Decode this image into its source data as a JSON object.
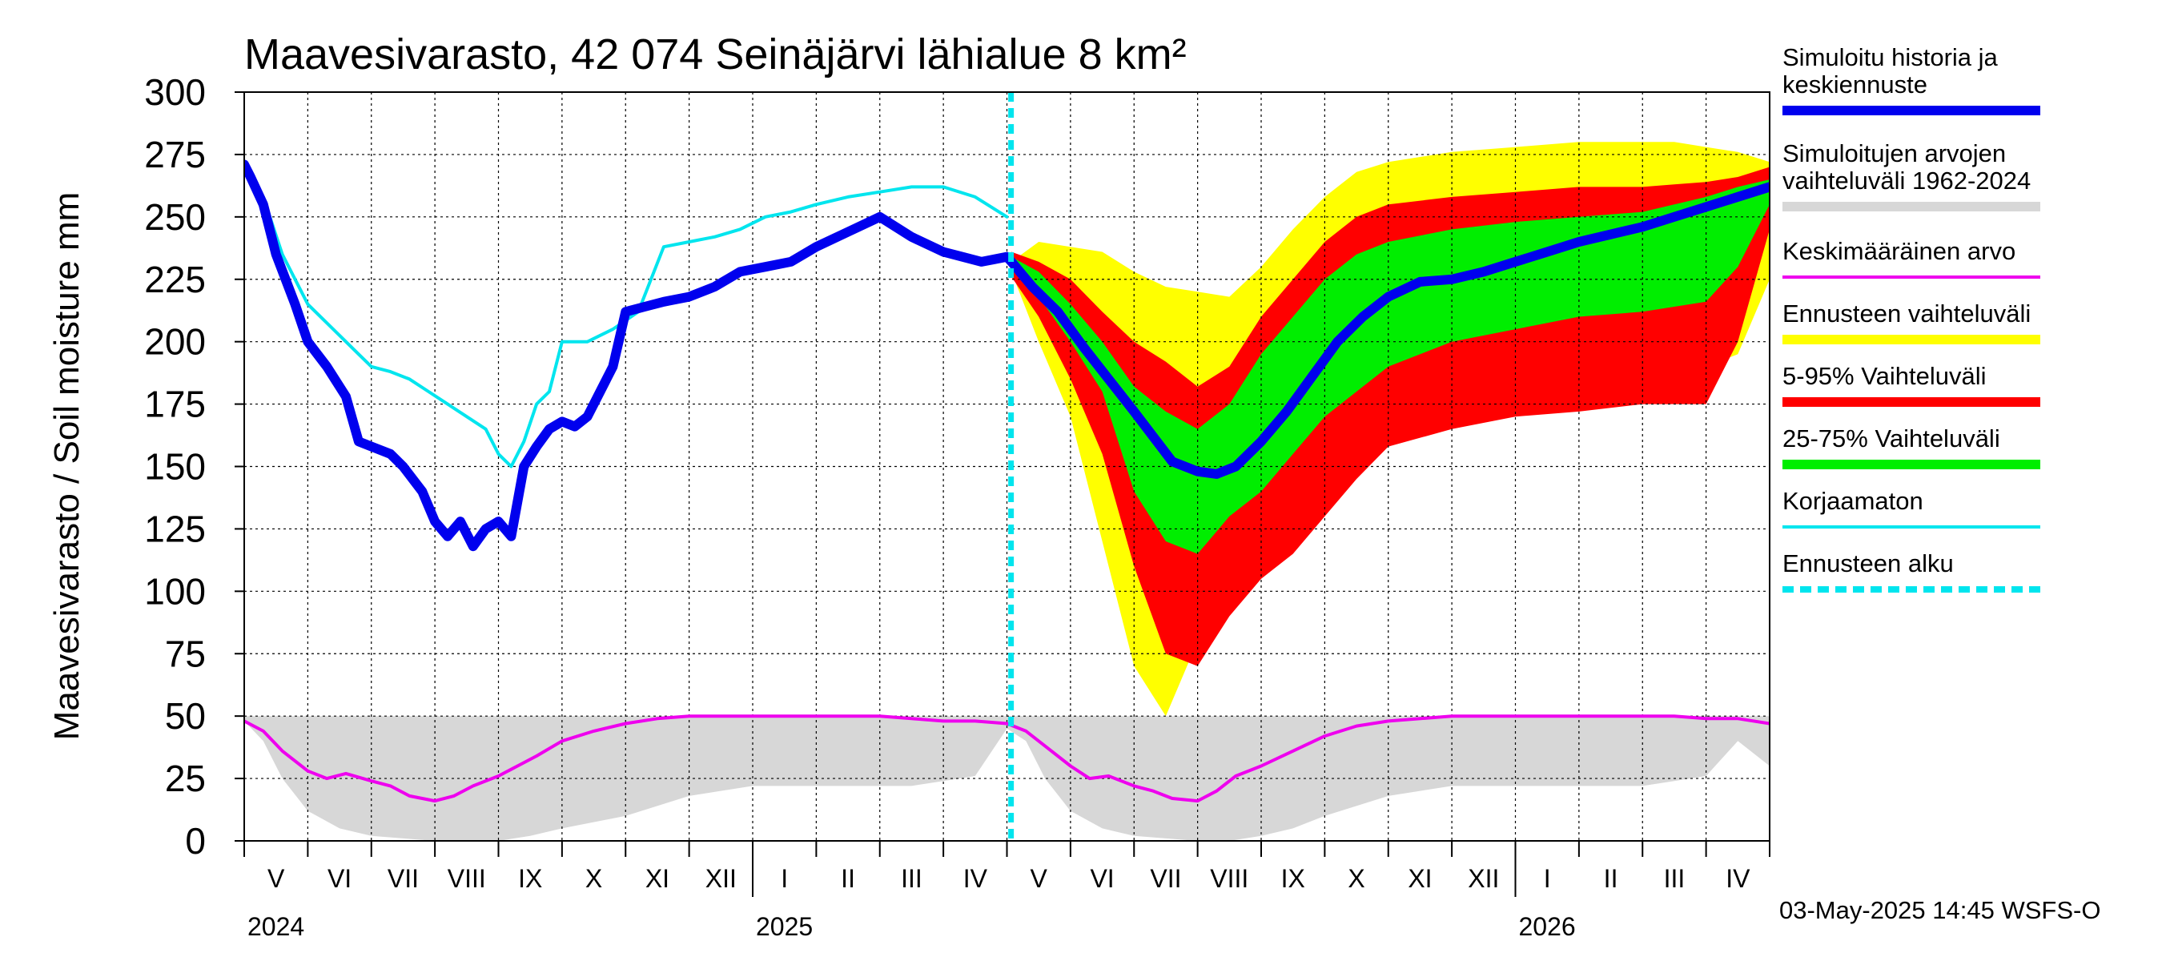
{
  "title": "Maavesivarasto, 42 074 Seinäjärvi lähialue 8 km²",
  "footer": "03-May-2025 14:45 WSFS-O",
  "chart_data": {
    "type": "line",
    "title": "Maavesivarasto, 42 074 Seinäjärvi lähialue 8 km²",
    "ylabel": "Maavesivarasto / Soil moisture   mm",
    "ylim": [
      0,
      300
    ],
    "yticks": [
      0,
      25,
      50,
      75,
      100,
      125,
      150,
      175,
      200,
      225,
      250,
      275,
      300
    ],
    "xlim": [
      "2024-05-01",
      "2026-05-01"
    ],
    "forecast_start": "2025-05-03",
    "grid": true,
    "legend_position": "right",
    "month_labels": [
      "V",
      "VI",
      "VII",
      "VIII",
      "IX",
      "X",
      "XI",
      "XII",
      "I",
      "II",
      "III",
      "IV",
      "V",
      "VI",
      "VII",
      "VIII",
      "IX",
      "X",
      "XI",
      "XII",
      "I",
      "II",
      "III",
      "IV"
    ],
    "year_labels": [
      {
        "label": "2024",
        "month_index": 0
      },
      {
        "label": "2025",
        "month_index": 8
      },
      {
        "label": "2026",
        "month_index": 20
      }
    ],
    "series": [
      {
        "name": "Simuloitu historia ja keskiennuste",
        "color": "#0000ee",
        "x": [
          0,
          0.1,
          0.3,
          0.5,
          0.8,
          1.0,
          1.3,
          1.6,
          1.8,
          2.0,
          2.3,
          2.5,
          2.8,
          3.0,
          3.2,
          3.4,
          3.6,
          3.8,
          4.0,
          4.2,
          4.4,
          4.6,
          4.8,
          5.0,
          5.2,
          5.4,
          5.6,
          5.8,
          6.0,
          6.3,
          6.6,
          7.0,
          7.4,
          7.8,
          8.2,
          8.6,
          9.0,
          9.5,
          10.0,
          10.5,
          11.0,
          11.3,
          11.6,
          11.8,
          12.0,
          12.07,
          12.4,
          12.8,
          13.2,
          13.6,
          14.0,
          14.3,
          14.6,
          15.0,
          15.3,
          15.6,
          16.0,
          16.4,
          16.8,
          17.2,
          17.6,
          18.0,
          18.5,
          19.0,
          19.5,
          20.0,
          20.5,
          21.0,
          21.5,
          22.0,
          22.5,
          23.0,
          23.5,
          24.0
        ],
        "y": [
          271,
          266,
          255,
          235,
          215,
          200,
          190,
          178,
          160,
          158,
          155,
          150,
          140,
          128,
          122,
          128,
          118,
          125,
          128,
          122,
          150,
          158,
          165,
          168,
          166,
          170,
          180,
          190,
          212,
          214,
          216,
          218,
          222,
          228,
          230,
          232,
          238,
          244,
          250,
          242,
          236,
          234,
          232,
          233,
          234,
          232,
          222,
          212,
          198,
          185,
          172,
          162,
          152,
          148,
          147,
          150,
          160,
          172,
          186,
          200,
          210,
          218,
          224,
          225,
          228,
          232,
          236,
          240,
          243,
          246,
          250,
          254,
          258,
          262
        ]
      },
      {
        "name": "Korjaamaton",
        "color": "#00e5ee",
        "x": [
          0,
          0.3,
          0.6,
          1.0,
          1.4,
          1.8,
          2.0,
          2.3,
          2.6,
          2.9,
          3.2,
          3.5,
          3.8,
          4.0,
          4.2,
          4.4,
          4.6,
          4.8,
          5.0,
          5.4,
          5.8,
          6.2,
          6.6,
          7.0,
          7.4,
          7.8,
          8.2,
          8.6,
          9.0,
          9.5,
          10.0,
          10.5,
          11.0,
          11.5,
          12.0
        ],
        "y": [
          270,
          258,
          235,
          215,
          205,
          195,
          190,
          188,
          185,
          180,
          175,
          170,
          165,
          155,
          150,
          160,
          175,
          180,
          200,
          200,
          205,
          212,
          238,
          240,
          242,
          245,
          250,
          252,
          255,
          258,
          260,
          262,
          262,
          258,
          250
        ]
      },
      {
        "name": "Keskimääräinen arvo",
        "color": "#ee00ee",
        "x": [
          0,
          0.3,
          0.6,
          1.0,
          1.3,
          1.6,
          2.0,
          2.3,
          2.6,
          3.0,
          3.3,
          3.6,
          4.0,
          4.3,
          4.6,
          5.0,
          5.5,
          6.0,
          6.5,
          7.0,
          8.0,
          9.0,
          10.0,
          10.5,
          11.0,
          11.5,
          12.0,
          12.3,
          12.6,
          13.0,
          13.3,
          13.6,
          14.0,
          14.3,
          14.6,
          15.0,
          15.3,
          15.6,
          16.0,
          16.5,
          17.0,
          17.5,
          18.0,
          19.0,
          20.0,
          21.0,
          22.0,
          22.5,
          23.0,
          23.5,
          24.0
        ],
        "y": [
          48,
          44,
          36,
          28,
          25,
          27,
          24,
          22,
          18,
          16,
          18,
          22,
          26,
          30,
          34,
          40,
          44,
          47,
          49,
          50,
          50,
          50,
          50,
          49,
          48,
          48,
          47,
          44,
          38,
          30,
          25,
          26,
          22,
          20,
          17,
          16,
          20,
          26,
          30,
          36,
          42,
          46,
          48,
          50,
          50,
          50,
          50,
          50,
          49,
          49,
          47
        ]
      }
    ],
    "bands": [
      {
        "name": "Simuloitujen arvojen vaihteluväli 1962-2024",
        "color": "#d7d7d7",
        "x": [
          0,
          0.3,
          0.6,
          1.0,
          1.5,
          2.0,
          2.5,
          3.0,
          3.5,
          4.0,
          4.5,
          5.0,
          6.0,
          7.0,
          8.0,
          9.0,
          10.0,
          10.5,
          11.0,
          11.5,
          12.0,
          12.3,
          12.6,
          13.0,
          13.5,
          14.0,
          14.5,
          15.0,
          15.5,
          16.0,
          16.5,
          17.0,
          18.0,
          19.0,
          20.0,
          21.0,
          22.0,
          22.5,
          23.0,
          23.5,
          24.0
        ],
        "low": [
          48,
          40,
          25,
          12,
          5,
          2,
          1,
          0,
          0,
          0,
          2,
          5,
          10,
          18,
          22,
          22,
          22,
          22,
          24,
          26,
          45,
          40,
          25,
          12,
          5,
          2,
          1,
          0,
          0,
          2,
          5,
          10,
          18,
          22,
          22,
          22,
          22,
          24,
          26,
          40,
          30
        ],
        "high": [
          50,
          50,
          50,
          50,
          50,
          50,
          50,
          50,
          50,
          50,
          50,
          50,
          50,
          50,
          50,
          50,
          50,
          50,
          50,
          50,
          50,
          50,
          50,
          50,
          50,
          50,
          50,
          50,
          50,
          50,
          50,
          50,
          50,
          50,
          50,
          50,
          50,
          50,
          50,
          50,
          50
        ]
      },
      {
        "name": "Ennusteen vaihteluväli",
        "color": "#ffff00",
        "x": [
          12.07,
          12.5,
          13.0,
          13.5,
          14.0,
          14.5,
          15.0,
          15.5,
          16.0,
          16.5,
          17.0,
          17.5,
          18.0,
          19.0,
          20.0,
          21.0,
          22.0,
          22.5,
          23.0,
          23.5,
          24.0
        ],
        "low": [
          228,
          200,
          170,
          120,
          70,
          50,
          80,
          100,
          110,
          130,
          145,
          155,
          165,
          175,
          180,
          185,
          190,
          190,
          190,
          195,
          225
        ],
        "high": [
          232,
          240,
          238,
          236,
          228,
          222,
          220,
          218,
          230,
          245,
          258,
          268,
          272,
          276,
          278,
          280,
          280,
          280,
          278,
          276,
          272
        ]
      },
      {
        "name": "5-95% Vaihteluväli",
        "color": "#ff0000",
        "x": [
          12.07,
          12.5,
          13.0,
          13.5,
          14.0,
          14.5,
          15.0,
          15.5,
          16.0,
          16.5,
          17.0,
          17.5,
          18.0,
          19.0,
          20.0,
          21.0,
          22.0,
          22.5,
          23.0,
          23.5,
          24.0
        ],
        "low": [
          226,
          210,
          185,
          155,
          110,
          75,
          70,
          90,
          105,
          115,
          130,
          145,
          158,
          165,
          170,
          172,
          175,
          175,
          175,
          200,
          245
        ],
        "high": [
          236,
          232,
          225,
          212,
          200,
          192,
          182,
          190,
          210,
          225,
          240,
          250,
          255,
          258,
          260,
          262,
          262,
          263,
          264,
          266,
          270
        ]
      },
      {
        "name": "25-75% Vaihteluväli",
        "color": "#00ee00",
        "x": [
          12.07,
          12.5,
          13.0,
          13.5,
          14.0,
          14.5,
          15.0,
          15.5,
          16.0,
          16.5,
          17.0,
          17.5,
          18.0,
          19.0,
          20.0,
          21.0,
          22.0,
          22.5,
          23.0,
          23.5,
          24.0
        ],
        "low": [
          230,
          218,
          200,
          180,
          140,
          120,
          115,
          130,
          140,
          155,
          170,
          180,
          190,
          200,
          205,
          210,
          212,
          214,
          216,
          230,
          255
        ],
        "high": [
          234,
          228,
          215,
          200,
          182,
          172,
          165,
          175,
          195,
          210,
          225,
          235,
          240,
          245,
          248,
          250,
          252,
          255,
          258,
          262,
          265
        ]
      }
    ]
  },
  "legend": {
    "items": [
      {
        "label": [
          "Simuloitu historia ja",
          "keskiennuste"
        ],
        "color": "#0000ee",
        "style": "thick"
      },
      {
        "label": [
          "Simuloitujen arvojen",
          "vaihteluväli 1962-2024"
        ],
        "color": "#d7d7d7",
        "style": "thick"
      },
      {
        "label": [
          "Keskimääräinen arvo"
        ],
        "color": "#ee00ee",
        "style": "thin"
      },
      {
        "label": [
          "Ennusteen vaihteluväli"
        ],
        "color": "#ffff00",
        "style": "thick"
      },
      {
        "label": [
          "5-95% Vaihteluväli"
        ],
        "color": "#ff0000",
        "style": "thick"
      },
      {
        "label": [
          "25-75% Vaihteluväli"
        ],
        "color": "#00ee00",
        "style": "thick"
      },
      {
        "label": [
          "Korjaamaton"
        ],
        "color": "#00e5ee",
        "style": "thin"
      },
      {
        "label": [
          "Ennusteen alku"
        ],
        "color": "#00e5ee",
        "style": "dashed"
      }
    ]
  }
}
